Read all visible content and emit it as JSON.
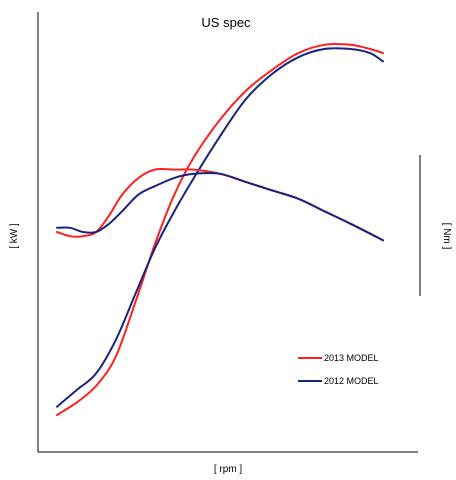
{
  "chart_data": {
    "type": "line",
    "title": "US spec",
    "xlabel": "[ rpm ]",
    "ylabel": "[ kW ]",
    "y2label": "[ Nm ]",
    "x_ticks": "none",
    "y_ticks": "none",
    "grid": false,
    "legend_position": "bottom-right",
    "x_range": [
      0,
      100
    ],
    "y_range": [
      0,
      100
    ],
    "colors": {
      "2013": "#ff2020",
      "2012": "#1a237e"
    },
    "series": [
      {
        "name": "2013 MODEL",
        "measure": "power",
        "color": "#ff2020",
        "x": [
          0,
          6,
          12,
          18,
          24,
          30,
          36,
          42,
          50,
          58,
          66,
          74,
          82,
          90,
          96,
          100
        ],
        "y": [
          6,
          9,
          13,
          20,
          33,
          47,
          59,
          68,
          77,
          84,
          89,
          93,
          95,
          95,
          94,
          93
        ]
      },
      {
        "name": "2012 MODEL",
        "measure": "power",
        "color": "#1a237e",
        "x": [
          0,
          6,
          12,
          18,
          24,
          30,
          36,
          42,
          50,
          58,
          66,
          74,
          82,
          90,
          96,
          100
        ],
        "y": [
          8,
          12,
          16,
          24,
          35,
          46,
          55,
          63,
          73,
          82,
          88,
          92,
          94,
          94,
          93,
          91
        ]
      },
      {
        "name": "2013 MODEL",
        "measure": "torque",
        "color": "#ff2020",
        "x": [
          0,
          4,
          8,
          12,
          16,
          20,
          25,
          30,
          36,
          42,
          50,
          58,
          66,
          74,
          82,
          90,
          100
        ],
        "y": [
          50,
          49,
          49,
          50,
          54,
          59,
          63,
          65,
          65,
          65,
          64,
          62,
          60,
          58,
          55,
          52,
          48
        ]
      },
      {
        "name": "2012 MODEL",
        "measure": "torque",
        "color": "#1a237e",
        "x": [
          0,
          4,
          8,
          12,
          16,
          20,
          25,
          30,
          36,
          42,
          50,
          58,
          66,
          74,
          82,
          90,
          100
        ],
        "y": [
          51,
          51,
          50,
          50,
          52,
          55,
          59,
          61,
          63,
          64,
          64,
          62,
          60,
          58,
          55,
          52,
          48
        ]
      }
    ],
    "legend": [
      {
        "label": "2013 MODEL",
        "color": "#ff2020"
      },
      {
        "label": "2012 MODEL",
        "color": "#1a237e"
      }
    ]
  }
}
